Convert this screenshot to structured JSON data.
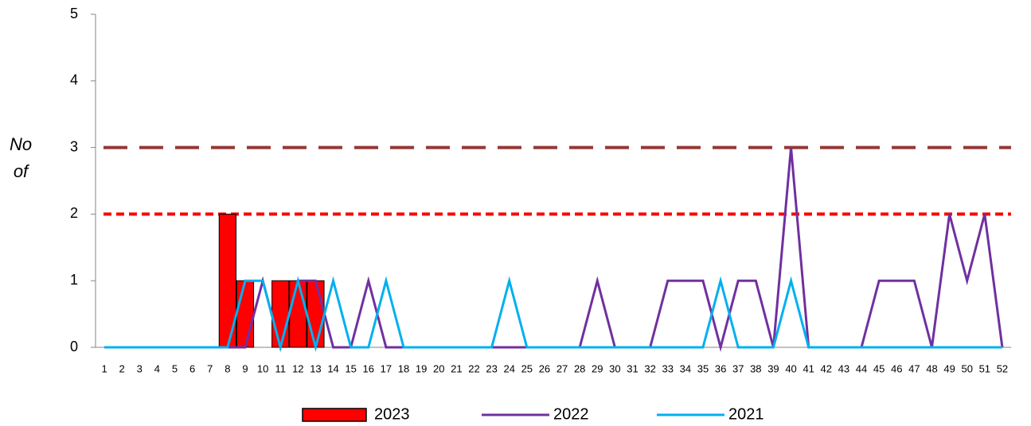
{
  "chart_data": {
    "type": "bar_line",
    "ylabel": "No of",
    "categories": [
      "1",
      "2",
      "3",
      "4",
      "5",
      "6",
      "7",
      "8",
      "9",
      "10",
      "11",
      "12",
      "13",
      "14",
      "15",
      "16",
      "17",
      "18",
      "19",
      "20",
      "21",
      "22",
      "23",
      "24",
      "25",
      "26",
      "27",
      "28",
      "29",
      "30",
      "31",
      "32",
      "33",
      "34",
      "35",
      "36",
      "37",
      "38",
      "39",
      "40",
      "41",
      "42",
      "43",
      "44",
      "45",
      "46",
      "47",
      "48",
      "49",
      "50",
      "51",
      "52"
    ],
    "series": [
      {
        "name": "2023",
        "type": "bar",
        "color": "#ff0000",
        "values": [
          0,
          0,
          0,
          0,
          0,
          0,
          0,
          2,
          1,
          0,
          1,
          1,
          1,
          null,
          null,
          null,
          null,
          null,
          null,
          null,
          null,
          null,
          null,
          null,
          null,
          null,
          null,
          null,
          null,
          null,
          null,
          null,
          null,
          null,
          null,
          null,
          null,
          null,
          null,
          null,
          null,
          null,
          null,
          null,
          null,
          null,
          null,
          null,
          null,
          null,
          null,
          null
        ]
      },
      {
        "name": "2022",
        "type": "line",
        "color": "#7030a0",
        "values": [
          0,
          0,
          0,
          0,
          0,
          0,
          0,
          0,
          0,
          1,
          0,
          1,
          1,
          0,
          0,
          1,
          0,
          0,
          0,
          0,
          0,
          0,
          0,
          0,
          0,
          0,
          0,
          0,
          1,
          0,
          0,
          0,
          1,
          1,
          1,
          0,
          1,
          1,
          0,
          3,
          0,
          0,
          0,
          0,
          1,
          1,
          1,
          0,
          2,
          1,
          2,
          0
        ]
      },
      {
        "name": "2021",
        "type": "line",
        "color": "#00b0f0",
        "values": [
          0,
          0,
          0,
          0,
          0,
          0,
          0,
          0,
          1,
          1,
          0,
          1,
          0,
          1,
          0,
          0,
          1,
          0,
          0,
          0,
          0,
          0,
          0,
          1,
          0,
          0,
          0,
          0,
          0,
          0,
          0,
          0,
          0,
          0,
          0,
          1,
          0,
          0,
          0,
          1,
          0,
          0,
          0,
          0,
          0,
          0,
          0,
          0,
          0,
          0,
          0,
          0
        ]
      }
    ],
    "reference_lines": [
      {
        "value": 3,
        "color": "#953735",
        "style": "long-dash"
      },
      {
        "value": 2,
        "color": "#ff0000",
        "style": "short-dash"
      }
    ],
    "ylim": [
      0,
      5
    ],
    "yticks": [
      0,
      1,
      2,
      3,
      4,
      5
    ]
  }
}
